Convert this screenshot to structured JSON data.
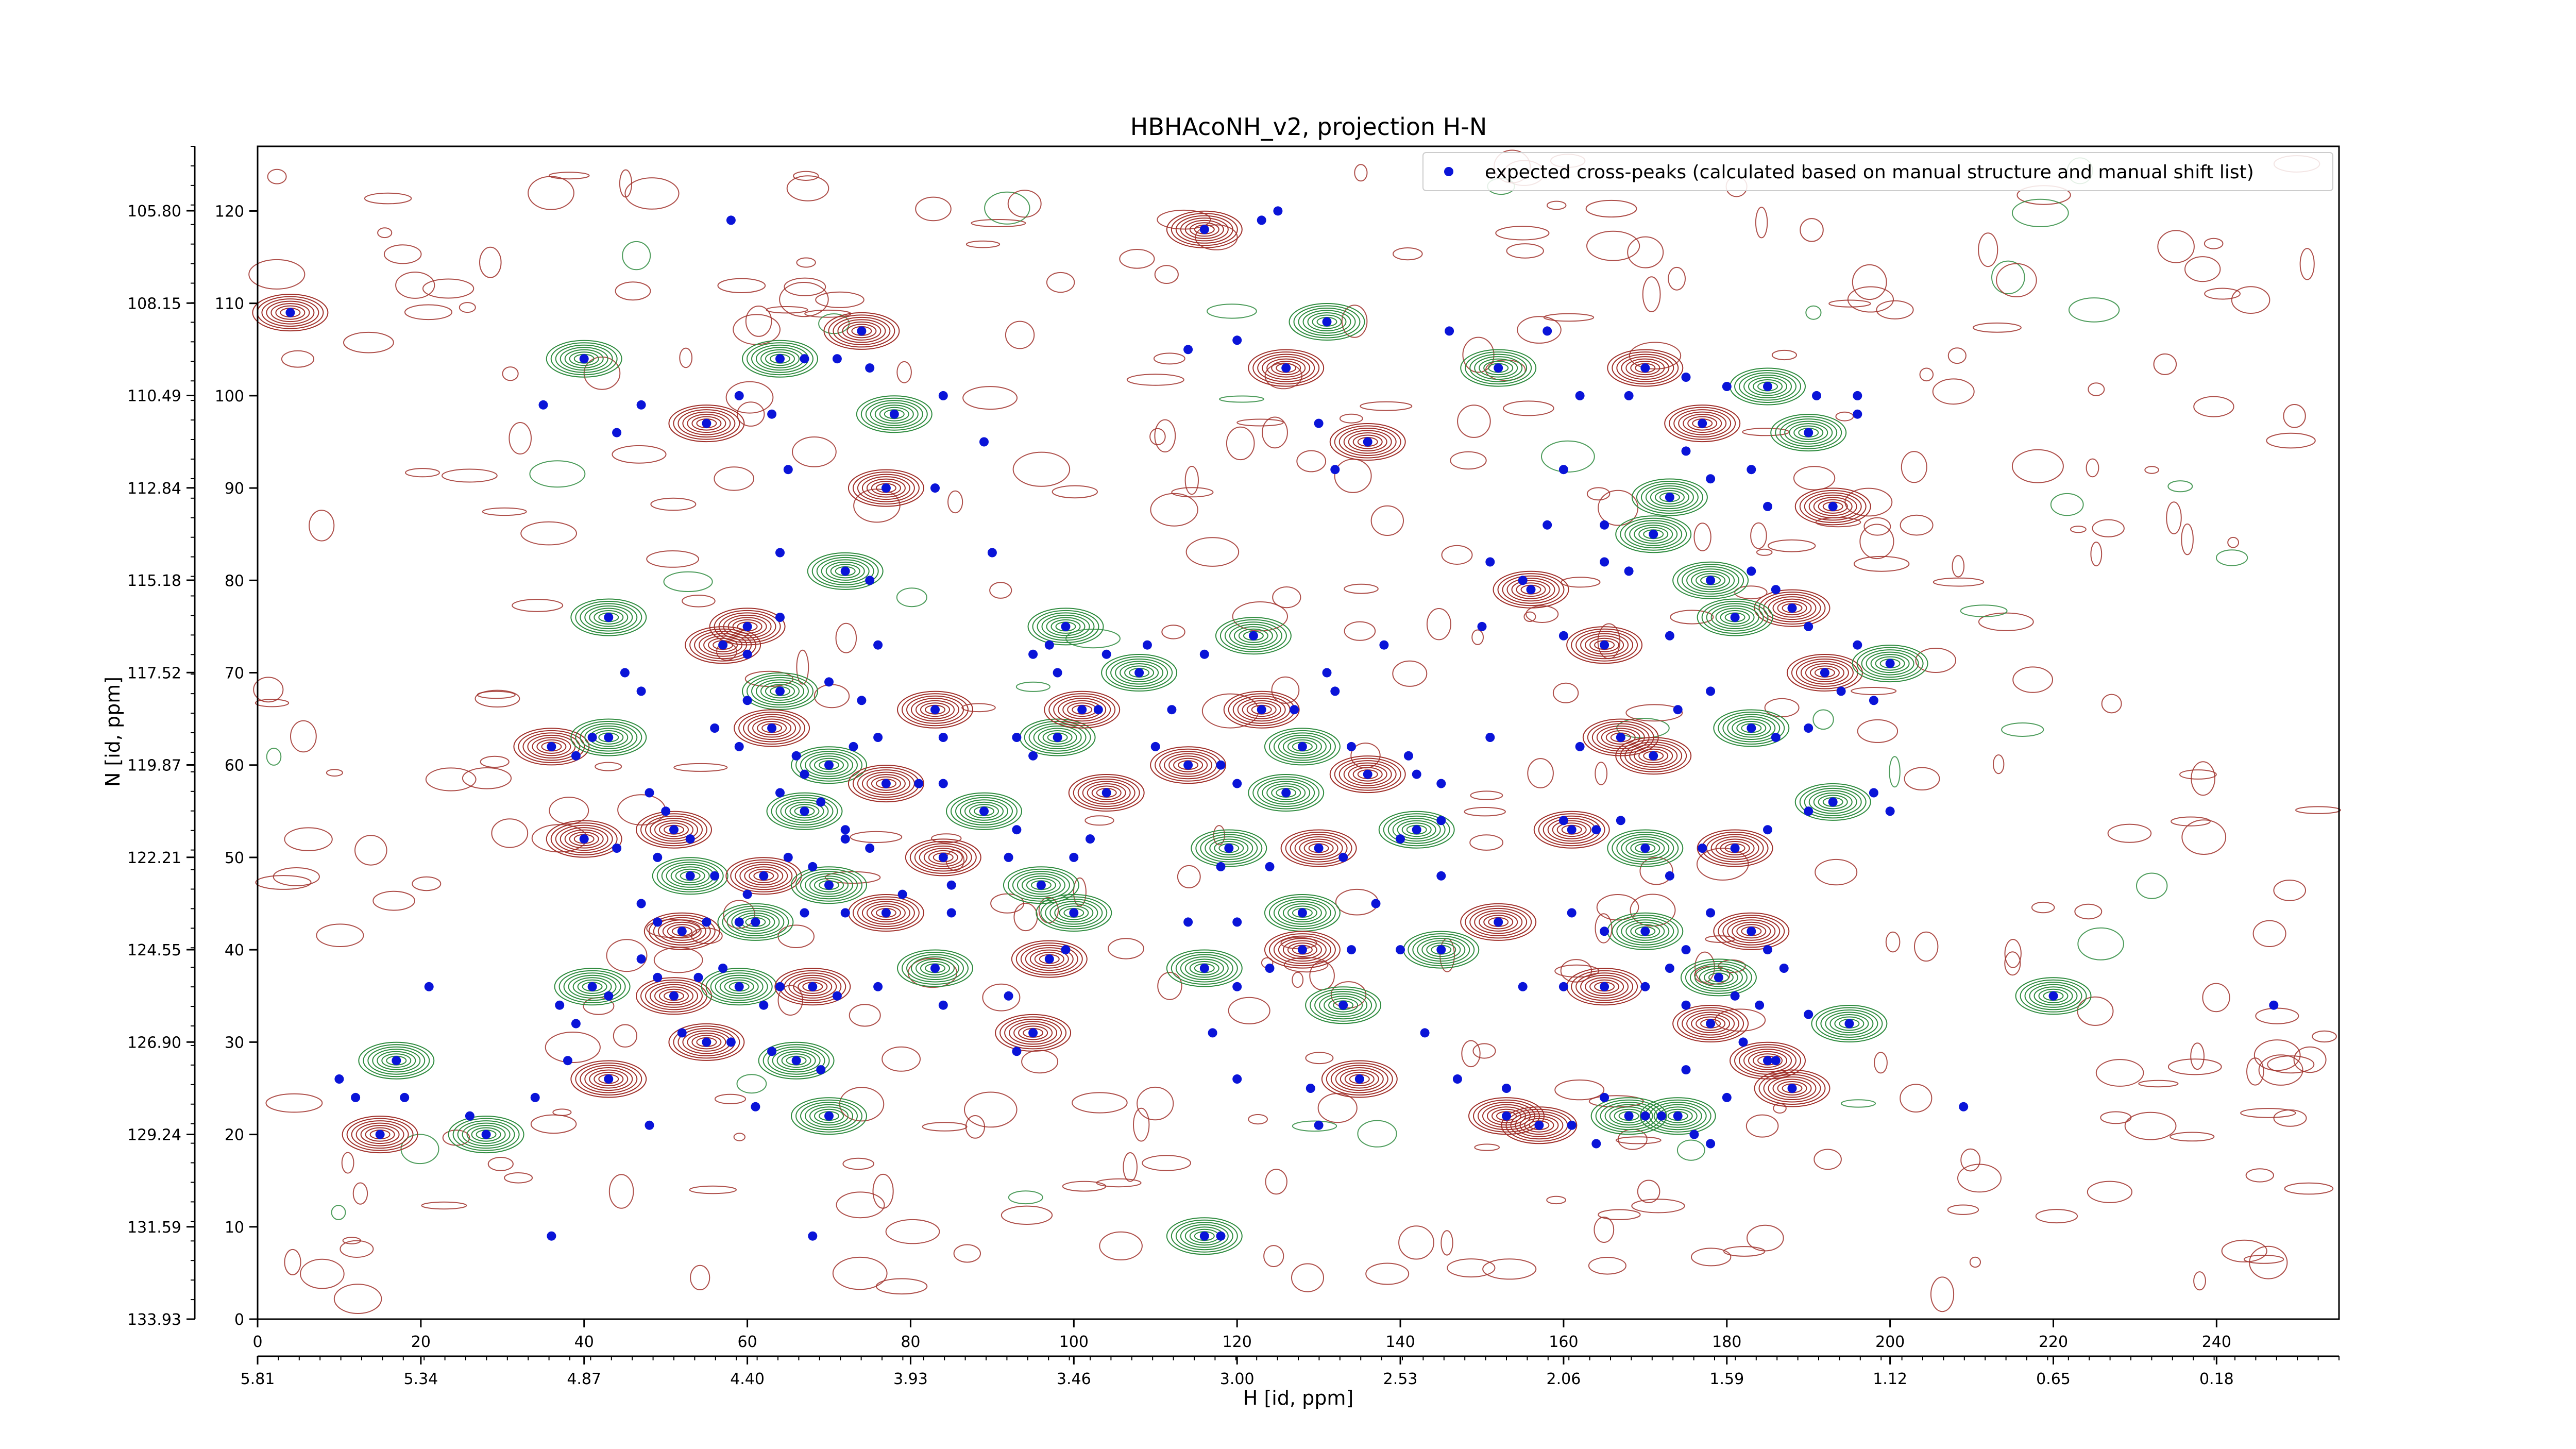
{
  "chart_data": {
    "type": "scatter",
    "title": "HBHAcoNH_v2, projection H-N",
    "xlabel": "H [id, ppm]",
    "ylabel": "N [id, ppm]",
    "x_index_range": [
      0,
      255
    ],
    "y_index_range": [
      0,
      127
    ],
    "x_index_ticks": [
      0,
      20,
      40,
      60,
      80,
      100,
      120,
      140,
      160,
      180,
      200,
      220,
      240
    ],
    "y_index_ticks": [
      0,
      10,
      20,
      30,
      40,
      50,
      60,
      70,
      80,
      90,
      100,
      110,
      120
    ],
    "x_ppm_tick_labels": [
      "5.81",
      "5.34",
      "4.87",
      "4.40",
      "3.93",
      "3.46",
      "3.00",
      "2.53",
      "2.06",
      "1.59",
      "1.12",
      "0.65",
      "0.18"
    ],
    "y_ppm_tick_labels": [
      "105.80",
      "108.15",
      "110.49",
      "112.84",
      "115.18",
      "117.52",
      "119.87",
      "122.21",
      "124.55",
      "126.90",
      "129.24",
      "131.59",
      "133.93"
    ],
    "legend": {
      "placement": "top-right",
      "entries": [
        "expected cross-peaks (calculated based on manual structure and manual shift list)"
      ]
    },
    "colors": {
      "positive_contour": "#a0302a",
      "negative_contour": "#2e8b3e",
      "marker": "#0a14d8"
    },
    "series": [
      {
        "name": "expected cross-peaks (calculated based on manual structure and manual shift list)",
        "points": [
          [
            4,
            109
          ],
          [
            58,
            119
          ],
          [
            35,
            99
          ],
          [
            40,
            104
          ],
          [
            44,
            96
          ],
          [
            47,
            99
          ],
          [
            55,
            97
          ],
          [
            59,
            100
          ],
          [
            63,
            98
          ],
          [
            64,
            104
          ],
          [
            67,
            104
          ],
          [
            71,
            104
          ],
          [
            74,
            107
          ],
          [
            75,
            103
          ],
          [
            65,
            92
          ],
          [
            78,
            98
          ],
          [
            84,
            100
          ],
          [
            89,
            95
          ],
          [
            77,
            90
          ],
          [
            83,
            90
          ],
          [
            64,
            83
          ],
          [
            72,
            81
          ],
          [
            75,
            80
          ],
          [
            90,
            83
          ],
          [
            60,
            75
          ],
          [
            64,
            76
          ],
          [
            76,
            73
          ],
          [
            43,
            76
          ],
          [
            45,
            70
          ],
          [
            47,
            68
          ],
          [
            57,
            73
          ],
          [
            60,
            72
          ],
          [
            60,
            67
          ],
          [
            64,
            68
          ],
          [
            70,
            69
          ],
          [
            74,
            67
          ],
          [
            36,
            62
          ],
          [
            39,
            61
          ],
          [
            41,
            63
          ],
          [
            43,
            63
          ],
          [
            56,
            64
          ],
          [
            59,
            62
          ],
          [
            63,
            64
          ],
          [
            66,
            61
          ],
          [
            67,
            59
          ],
          [
            70,
            60
          ],
          [
            73,
            62
          ],
          [
            76,
            63
          ],
          [
            83,
            66
          ],
          [
            84,
            63
          ],
          [
            93,
            63
          ],
          [
            98,
            63
          ],
          [
            48,
            57
          ],
          [
            50,
            55
          ],
          [
            51,
            53
          ],
          [
            53,
            52
          ],
          [
            64,
            57
          ],
          [
            67,
            55
          ],
          [
            69,
            56
          ],
          [
            72,
            53
          ],
          [
            77,
            58
          ],
          [
            81,
            58
          ],
          [
            84,
            58
          ],
          [
            89,
            55
          ],
          [
            93,
            53
          ],
          [
            95,
            61
          ],
          [
            40,
            52
          ],
          [
            44,
            51
          ],
          [
            49,
            50
          ],
          [
            53,
            48
          ],
          [
            56,
            48
          ],
          [
            60,
            46
          ],
          [
            62,
            48
          ],
          [
            65,
            50
          ],
          [
            68,
            49
          ],
          [
            70,
            47
          ],
          [
            72,
            52
          ],
          [
            75,
            51
          ],
          [
            84,
            50
          ],
          [
            85,
            47
          ],
          [
            92,
            50
          ],
          [
            96,
            47
          ],
          [
            47,
            45
          ],
          [
            49,
            43
          ],
          [
            52,
            42
          ],
          [
            55,
            43
          ],
          [
            59,
            43
          ],
          [
            61,
            43
          ],
          [
            67,
            44
          ],
          [
            72,
            44
          ],
          [
            77,
            44
          ],
          [
            79,
            46
          ],
          [
            85,
            44
          ],
          [
            100,
            44
          ],
          [
            47,
            39
          ],
          [
            49,
            37
          ],
          [
            51,
            35
          ],
          [
            54,
            37
          ],
          [
            57,
            38
          ],
          [
            59,
            36
          ],
          [
            62,
            34
          ],
          [
            64,
            36
          ],
          [
            68,
            36
          ],
          [
            71,
            35
          ],
          [
            76,
            36
          ],
          [
            83,
            38
          ],
          [
            84,
            34
          ],
          [
            92,
            35
          ],
          [
            97,
            39
          ],
          [
            37,
            34
          ],
          [
            39,
            32
          ],
          [
            41,
            36
          ],
          [
            43,
            35
          ],
          [
            52,
            31
          ],
          [
            55,
            30
          ],
          [
            58,
            30
          ],
          [
            63,
            29
          ],
          [
            66,
            28
          ],
          [
            69,
            27
          ],
          [
            93,
            29
          ],
          [
            95,
            31
          ],
          [
            99,
            40
          ],
          [
            21,
            36
          ],
          [
            17,
            28
          ],
          [
            10,
            26
          ],
          [
            12,
            24
          ],
          [
            15,
            20
          ],
          [
            18,
            24
          ],
          [
            26,
            22
          ],
          [
            28,
            20
          ],
          [
            34,
            24
          ],
          [
            38,
            28
          ],
          [
            43,
            26
          ],
          [
            48,
            21
          ],
          [
            61,
            23
          ],
          [
            70,
            22
          ],
          [
            68,
            9
          ],
          [
            36,
            9
          ],
          [
            116,
            118
          ],
          [
            123,
            119
          ],
          [
            125,
            120
          ],
          [
            131,
            108
          ],
          [
            114,
            105
          ],
          [
            120,
            106
          ],
          [
            126,
            103
          ],
          [
            146,
            107
          ],
          [
            158,
            107
          ],
          [
            152,
            103
          ],
          [
            162,
            100
          ],
          [
            168,
            100
          ],
          [
            170,
            103
          ],
          [
            175,
            102
          ],
          [
            180,
            101
          ],
          [
            185,
            101
          ],
          [
            191,
            100
          ],
          [
            196,
            100
          ],
          [
            177,
            97
          ],
          [
            175,
            94
          ],
          [
            183,
            92
          ],
          [
            190,
            96
          ],
          [
            196,
            98
          ],
          [
            130,
            97
          ],
          [
            136,
            95
          ],
          [
            132,
            92
          ],
          [
            160,
            92
          ],
          [
            173,
            89
          ],
          [
            178,
            91
          ],
          [
            185,
            88
          ],
          [
            193,
            88
          ],
          [
            158,
            86
          ],
          [
            165,
            86
          ],
          [
            171,
            85
          ],
          [
            151,
            82
          ],
          [
            155,
            80
          ],
          [
            156,
            79
          ],
          [
            165,
            82
          ],
          [
            168,
            81
          ],
          [
            178,
            80
          ],
          [
            183,
            81
          ],
          [
            186,
            79
          ],
          [
            188,
            77
          ],
          [
            190,
            75
          ],
          [
            196,
            73
          ],
          [
            181,
            76
          ],
          [
            173,
            74
          ],
          [
            160,
            74
          ],
          [
            165,
            73
          ],
          [
            150,
            75
          ],
          [
            116,
            72
          ],
          [
            122,
            74
          ],
          [
            131,
            70
          ],
          [
            138,
            73
          ],
          [
            123,
            66
          ],
          [
            127,
            66
          ],
          [
            132,
            68
          ],
          [
            128,
            62
          ],
          [
            134,
            62
          ],
          [
            141,
            61
          ],
          [
            136,
            59
          ],
          [
            142,
            59
          ],
          [
            145,
            58
          ],
          [
            126,
            57
          ],
          [
            120,
            58
          ],
          [
            118,
            60
          ],
          [
            114,
            60
          ],
          [
            110,
            62
          ],
          [
            112,
            66
          ],
          [
            108,
            70
          ],
          [
            104,
            72
          ],
          [
            109,
            73
          ],
          [
            101,
            66
          ],
          [
            98,
            70
          ],
          [
            95,
            72
          ],
          [
            99,
            75
          ],
          [
            97,
            73
          ],
          [
            103,
            66
          ],
          [
            104,
            57
          ],
          [
            102,
            52
          ],
          [
            100,
            50
          ],
          [
            119,
            51
          ],
          [
            118,
            49
          ],
          [
            124,
            49
          ],
          [
            130,
            51
          ],
          [
            133,
            50
          ],
          [
            140,
            52
          ],
          [
            142,
            53
          ],
          [
            145,
            54
          ],
          [
            160,
            54
          ],
          [
            161,
            53
          ],
          [
            164,
            53
          ],
          [
            167,
            54
          ],
          [
            170,
            51
          ],
          [
            173,
            48
          ],
          [
            177,
            51
          ],
          [
            181,
            51
          ],
          [
            185,
            53
          ],
          [
            190,
            55
          ],
          [
            193,
            56
          ],
          [
            198,
            57
          ],
          [
            200,
            55
          ],
          [
            171,
            61
          ],
          [
            174,
            66
          ],
          [
            178,
            68
          ],
          [
            183,
            64
          ],
          [
            186,
            63
          ],
          [
            190,
            64
          ],
          [
            192,
            70
          ],
          [
            194,
            68
          ],
          [
            198,
            67
          ],
          [
            200,
            71
          ],
          [
            151,
            63
          ],
          [
            162,
            62
          ],
          [
            167,
            63
          ],
          [
            114,
            43
          ],
          [
            120,
            43
          ],
          [
            128,
            44
          ],
          [
            137,
            45
          ],
          [
            145,
            48
          ],
          [
            152,
            43
          ],
          [
            161,
            44
          ],
          [
            165,
            42
          ],
          [
            170,
            42
          ],
          [
            175,
            40
          ],
          [
            178,
            44
          ],
          [
            183,
            42
          ],
          [
            185,
            40
          ],
          [
            187,
            38
          ],
          [
            116,
            38
          ],
          [
            120,
            36
          ],
          [
            124,
            38
          ],
          [
            128,
            40
          ],
          [
            134,
            40
          ],
          [
            140,
            40
          ],
          [
            145,
            40
          ],
          [
            155,
            36
          ],
          [
            160,
            36
          ],
          [
            165,
            36
          ],
          [
            170,
            36
          ],
          [
            173,
            38
          ],
          [
            179,
            37
          ],
          [
            181,
            35
          ],
          [
            175,
            34
          ],
          [
            178,
            32
          ],
          [
            184,
            34
          ],
          [
            190,
            33
          ],
          [
            195,
            32
          ],
          [
            182,
            30
          ],
          [
            186,
            28
          ],
          [
            188,
            25
          ],
          [
            175,
            27
          ],
          [
            170,
            22
          ],
          [
            168,
            22
          ],
          [
            165,
            24
          ],
          [
            161,
            21
          ],
          [
            157,
            21
          ],
          [
            153,
            25
          ],
          [
            143,
            31
          ],
          [
            133,
            34
          ],
          [
            117,
            31
          ],
          [
            129,
            25
          ],
          [
            135,
            26
          ],
          [
            147,
            26
          ],
          [
            120,
            26
          ],
          [
            116,
            9
          ],
          [
            118,
            9
          ],
          [
            130,
            21
          ],
          [
            153,
            22
          ],
          [
            164,
            19
          ],
          [
            172,
            22
          ],
          [
            174,
            22
          ],
          [
            176,
            20
          ],
          [
            180,
            24
          ],
          [
            185,
            28
          ],
          [
            178,
            19
          ],
          [
            209,
            23
          ],
          [
            220,
            35
          ],
          [
            247,
            34
          ]
        ]
      }
    ]
  }
}
